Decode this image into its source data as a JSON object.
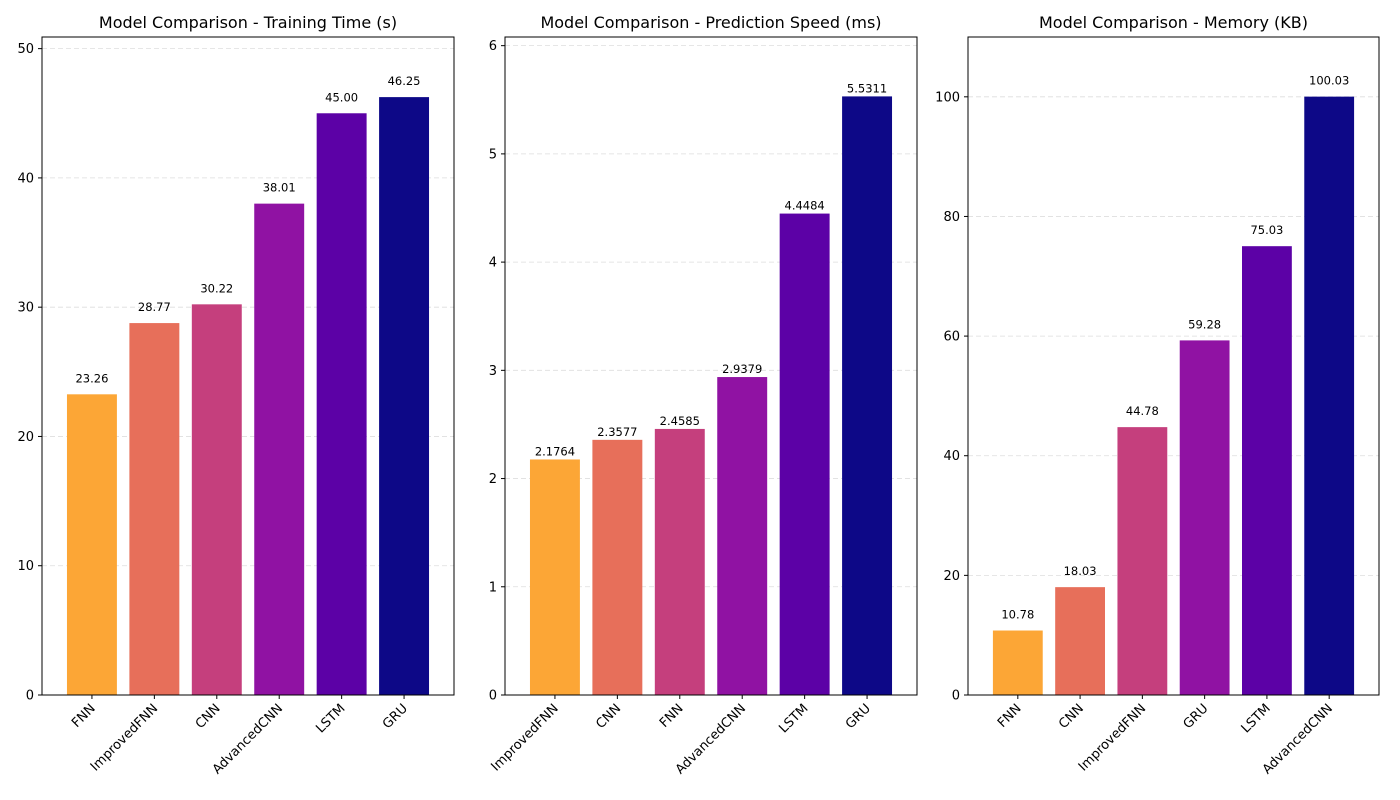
{
  "chart_data": [
    {
      "type": "bar",
      "title": "Model Comparison - Training Time (s)",
      "categories": [
        "FNN",
        "ImprovedFNN",
        "CNN",
        "AdvancedCNN",
        "LSTM",
        "GRU"
      ],
      "values": [
        23.26,
        28.77,
        30.22,
        38.01,
        45.0,
        46.25
      ],
      "value_labels": [
        "23.26",
        "28.77",
        "30.22",
        "38.01",
        "45.00",
        "46.25"
      ],
      "label_position": "above-with-gap",
      "ylim": [
        0,
        50.9
      ],
      "yticks": [
        0,
        10,
        20,
        30,
        40,
        50
      ],
      "colors": [
        "#fca636",
        "#e76f5a",
        "#c53f7d",
        "#9012a3",
        "#5c01a6",
        "#0d0887"
      ],
      "grid": true,
      "xlabel": "",
      "ylabel": ""
    },
    {
      "type": "bar",
      "title": "Model Comparison - Prediction Speed (ms)",
      "categories": [
        "ImprovedFNN",
        "CNN",
        "FNN",
        "AdvancedCNN",
        "LSTM",
        "GRU"
      ],
      "values": [
        2.1764,
        2.3577,
        2.4585,
        2.9379,
        4.4484,
        5.5311
      ],
      "value_labels": [
        "2.1764",
        "2.3577",
        "2.4585",
        "2.9379",
        "4.4484",
        "5.5311"
      ],
      "label_position": "above",
      "ylim": [
        0,
        6.08
      ],
      "yticks": [
        0,
        1,
        2,
        3,
        4,
        5,
        6
      ],
      "colors": [
        "#fca636",
        "#e76f5a",
        "#c53f7d",
        "#9012a3",
        "#5c01a6",
        "#0d0887"
      ],
      "grid": true,
      "xlabel": "",
      "ylabel": ""
    },
    {
      "type": "bar",
      "title": "Model Comparison - Memory (KB)",
      "categories": [
        "FNN",
        "CNN",
        "ImprovedFNN",
        "GRU",
        "LSTM",
        "AdvancedCNN"
      ],
      "values": [
        10.78,
        18.03,
        44.78,
        59.28,
        75.03,
        100.03
      ],
      "value_labels": [
        "10.78",
        "18.03",
        "44.78",
        "59.28",
        "75.03",
        "100.03"
      ],
      "label_position": "above-with-gap",
      "ylim": [
        0,
        110
      ],
      "yticks": [
        0,
        20,
        40,
        60,
        80,
        100
      ],
      "colors": [
        "#fca636",
        "#e76f5a",
        "#c53f7d",
        "#9012a3",
        "#5c01a6",
        "#0d0887"
      ],
      "grid": true,
      "xlabel": "",
      "ylabel": ""
    }
  ]
}
